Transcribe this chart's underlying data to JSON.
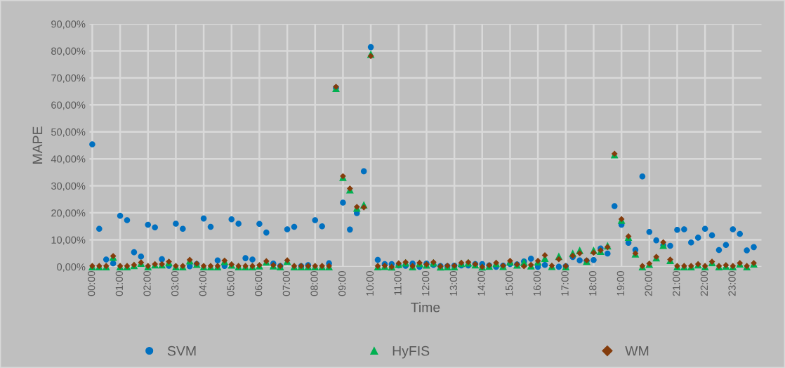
{
  "chart_data": {
    "type": "scatter",
    "xlabel": "Time",
    "ylabel": "MAPE",
    "categories": [
      "00:00",
      null,
      null,
      null,
      "01:00",
      null,
      null,
      null,
      "02:00",
      null,
      null,
      null,
      "03:00",
      null,
      null,
      null,
      "04:00",
      null,
      null,
      null,
      "05:00",
      null,
      null,
      null,
      "06:00",
      null,
      null,
      null,
      "07:00",
      null,
      null,
      null,
      "08:00",
      null,
      null,
      null,
      "09:00",
      null,
      null,
      null,
      "10:00",
      null,
      null,
      null,
      "11:00",
      null,
      null,
      null,
      "12:00",
      null,
      null,
      null,
      "13:00",
      null,
      null,
      null,
      "14:00",
      null,
      null,
      null,
      "15:00",
      null,
      null,
      null,
      "16:00",
      null,
      null,
      null,
      "17:00",
      null,
      null,
      null,
      "18:00",
      null,
      null,
      null,
      "19:00",
      null,
      null,
      null,
      "20:00",
      null,
      null,
      null,
      "21:00",
      null,
      null,
      null,
      "22:00",
      null,
      null,
      null,
      "23:00",
      null,
      null,
      null
    ],
    "series": [
      {
        "name": "SVM",
        "color": "#0070c0",
        "marker": "circle",
        "values": [
          45.4,
          14.1,
          2.7,
          1.3,
          18.9,
          17.3,
          5.4,
          3.8,
          15.6,
          14.6,
          2.8,
          0.4,
          16.0,
          14.1,
          0.2,
          1.0,
          17.9,
          14.8,
          2.4,
          0.3,
          17.6,
          16.0,
          3.2,
          2.7,
          15.9,
          12.7,
          1.2,
          0.3,
          13.9,
          14.8,
          0.2,
          0.6,
          17.3,
          15.0,
          1.3,
          66.3,
          23.8,
          13.8,
          19.9,
          35.4,
          81.4,
          2.6,
          1.0,
          1.0,
          0.5,
          0.4,
          1.2,
          0.0,
          1.2,
          0.7,
          0.3,
          0.2,
          0.4,
          0.5,
          0.5,
          1.0,
          1.0,
          0.5,
          0.0,
          0.4,
          1.0,
          0.9,
          2.0,
          3.0,
          0.0,
          0.7,
          null,
          0.0,
          0.2,
          3.6,
          2.4,
          2.2,
          2.5,
          6.8,
          4.9,
          22.5,
          15.6,
          8.9,
          6.3,
          33.5,
          12.9,
          9.8,
          8.0,
          7.8,
          13.7,
          13.9,
          9.0,
          10.8,
          14.1,
          11.7,
          6.2,
          8.1,
          13.9,
          12.2,
          6.1,
          7.3
        ]
      },
      {
        "name": "HyFIS",
        "color": "#00b050",
        "marker": "triangle",
        "values": [
          0.1,
          0.1,
          0.1,
          3.6,
          0.1,
          0.1,
          0.5,
          1.4,
          0.1,
          0.8,
          0.8,
          1.6,
          0.1,
          0.1,
          2.3,
          1.0,
          0.1,
          0.1,
          0.1,
          2.0,
          0.7,
          0.1,
          0.1,
          0.1,
          0.4,
          1.8,
          0.4,
          0.1,
          2.1,
          0.1,
          0.1,
          0.1,
          0.1,
          0.1,
          0.1,
          66.2,
          33.2,
          28.6,
          21.8,
          23.0,
          78.8,
          0.1,
          0.2,
          0.0,
          1.0,
          1.5,
          0.1,
          1.3,
          0.7,
          1.5,
          0.0,
          0.1,
          0.1,
          1.3,
          1.5,
          0.8,
          0.0,
          0.3,
          1.3,
          0.2,
          1.9,
          0.7,
          1.7,
          0.4,
          1.9,
          3.2,
          0.2,
          3.9,
          0.1,
          5.0,
          6.1,
          2.1,
          6.1,
          5.8,
          7.8,
          41.6,
          17.3,
          11.0,
          4.8,
          0.1,
          1.0,
          3.4,
          8.0,
          2.4,
          0.1,
          0.1,
          0.1,
          0.8,
          0.1,
          1.6,
          0.1,
          0.3,
          0.1,
          1.1,
          0.1,
          1.1
        ]
      },
      {
        "name": "WM",
        "color": "#843c0c",
        "marker": "diamond",
        "values": [
          0.3,
          0.3,
          0.3,
          4.0,
          0.3,
          0.3,
          0.7,
          1.6,
          0.3,
          1.0,
          1.0,
          1.9,
          0.3,
          0.3,
          2.6,
          1.2,
          0.3,
          0.3,
          0.3,
          2.3,
          0.9,
          0.3,
          0.3,
          0.3,
          0.6,
          2.1,
          0.6,
          0.3,
          2.4,
          0.3,
          0.3,
          0.3,
          0.3,
          0.3,
          0.3,
          66.7,
          33.6,
          29.0,
          22.2,
          22.0,
          78.1,
          0.3,
          0.4,
          0.0,
          1.3,
          1.7,
          0.3,
          1.5,
          0.9,
          1.7,
          0.2,
          0.4,
          0.4,
          1.5,
          1.7,
          1.0,
          0.0,
          0.6,
          1.5,
          0.4,
          2.2,
          0.9,
          0.2,
          0.7,
          2.2,
          4.3,
          0.4,
          2.8,
          0.3,
          4.1,
          5.0,
          2.4,
          5.2,
          6.1,
          7.3,
          41.9,
          17.7,
          11.3,
          5.0,
          0.3,
          1.2,
          3.7,
          9.1,
          2.7,
          0.3,
          0.3,
          0.3,
          1.0,
          0.3,
          1.9,
          0.3,
          0.6,
          0.3,
          1.4,
          0.3,
          1.4
        ]
      }
    ],
    "ylim": [
      0,
      90
    ],
    "yticks": [
      {
        "value": 0,
        "label": "0,00%"
      },
      {
        "value": 10,
        "label": "10,00%"
      },
      {
        "value": 20,
        "label": "20,00%"
      },
      {
        "value": 30,
        "label": "30,00%"
      },
      {
        "value": 40,
        "label": "40,00%"
      },
      {
        "value": 50,
        "label": "50,00%"
      },
      {
        "value": 60,
        "label": "60,00%"
      },
      {
        "value": 70,
        "label": "70,00%"
      },
      {
        "value": 80,
        "label": "80,00%"
      },
      {
        "value": 90,
        "label": "90,00%"
      }
    ],
    "grid": true,
    "legend": "bottom"
  }
}
